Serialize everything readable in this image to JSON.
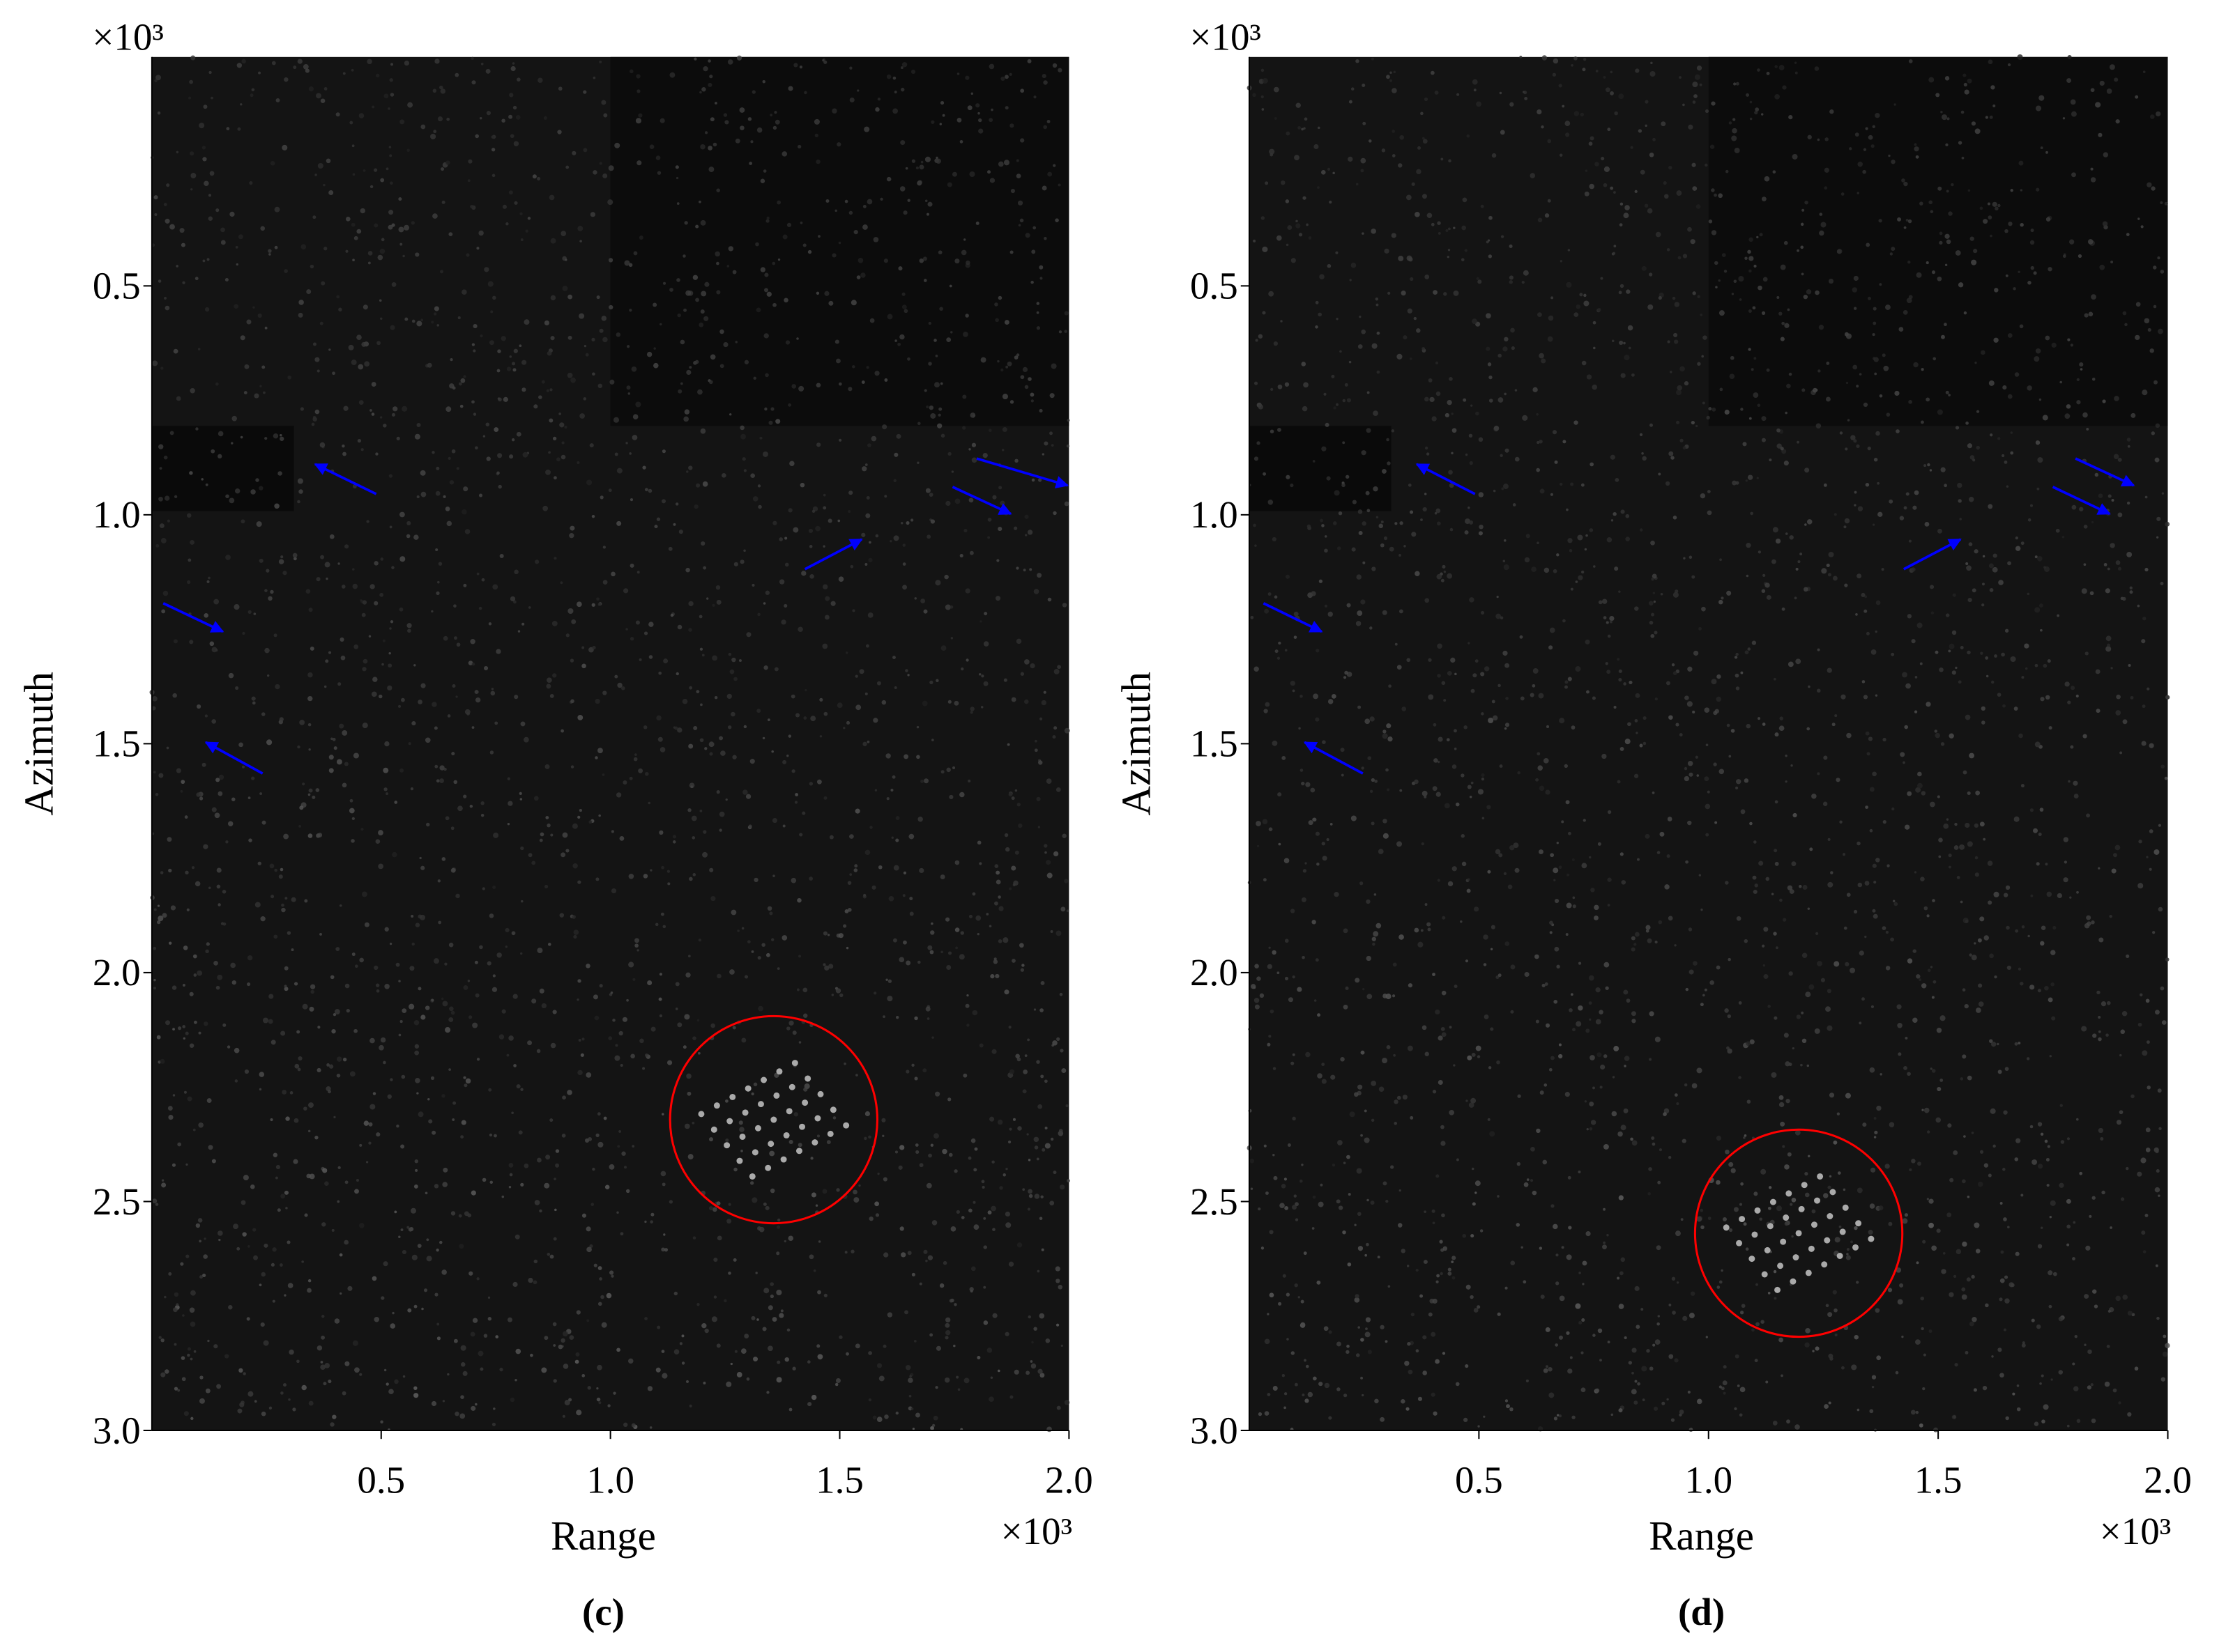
{
  "chart_data": [
    {
      "type": "image",
      "label": "(c)",
      "xlabel": "Range",
      "ylabel": "Azimuth",
      "x_multiplier": "×10³",
      "y_multiplier": "×10³",
      "xlim": [
        0,
        2000
      ],
      "ylim": [
        0,
        3000
      ],
      "y_inverted": true,
      "xticks": [
        {
          "value": 500,
          "label": "0.5"
        },
        {
          "value": 1000,
          "label": "1.0"
        },
        {
          "value": 1500,
          "label": "1.5"
        },
        {
          "value": 2000,
          "label": "2.0"
        }
      ],
      "yticks": [
        {
          "value": 500,
          "label": "0.5"
        },
        {
          "value": 1000,
          "label": "1.0"
        },
        {
          "value": 1500,
          "label": "1.5"
        },
        {
          "value": 2000,
          "label": "2.0"
        },
        {
          "value": 2500,
          "label": "2.5"
        },
        {
          "value": 3000,
          "label": "3.0"
        }
      ]
    },
    {
      "type": "image",
      "label": "(d)",
      "xlabel": "Range",
      "ylabel": "Azimuth",
      "x_multiplier": "×10³",
      "y_multiplier": "×10³",
      "xlim": [
        0,
        2000
      ],
      "ylim": [
        0,
        3000
      ],
      "y_inverted": true,
      "xticks": [
        {
          "value": 500,
          "label": "0.5"
        },
        {
          "value": 1000,
          "label": "1.0"
        },
        {
          "value": 1500,
          "label": "1.5"
        },
        {
          "value": 2000,
          "label": "2.0"
        }
      ],
      "yticks": [
        {
          "value": 500,
          "label": "0.5"
        },
        {
          "value": 1000,
          "label": "1.0"
        },
        {
          "value": 1500,
          "label": "1.5"
        },
        {
          "value": 2000,
          "label": "2.0"
        },
        {
          "value": 2500,
          "label": "2.5"
        },
        {
          "value": 3000,
          "label": "3.0"
        }
      ]
    }
  ]
}
